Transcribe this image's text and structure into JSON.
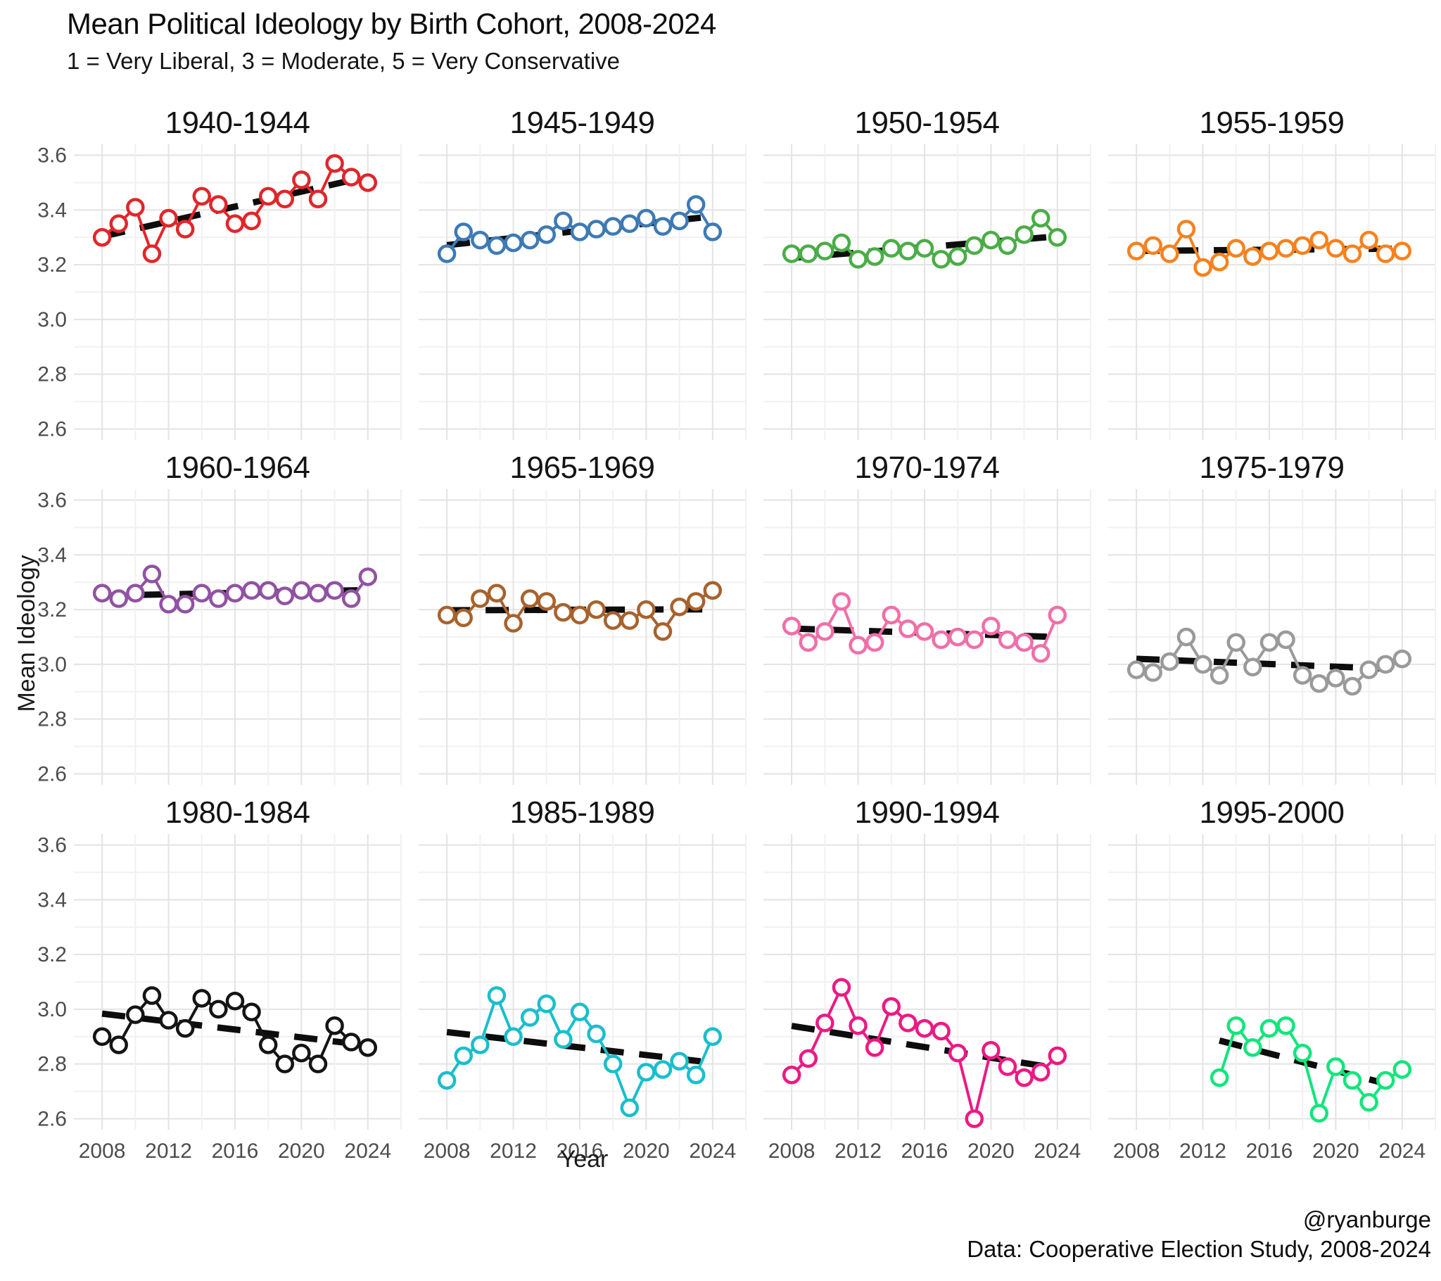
{
  "header": {
    "title": "Mean Political Ideology by Birth Cohort, 2008-2024",
    "subtitle": "1 = Very Liberal, 3 = Moderate, 5 = Very Conservative"
  },
  "caption": {
    "handle": "@ryanburge",
    "source": "Data: Cooperative Election Study, 2008-2024"
  },
  "axes": {
    "x_label": "Year",
    "y_label": "Mean Ideology",
    "x_ticks": [
      2008,
      2012,
      2016,
      2020,
      2024
    ],
    "x_minor": [
      2010,
      2014,
      2018,
      2022,
      2026
    ],
    "y_ticks": [
      3.6,
      3.4,
      3.2,
      3.0,
      2.8,
      2.6
    ],
    "y_minor": [
      3.5,
      3.3,
      3.1,
      2.9,
      2.7
    ],
    "x_domain": [
      2006.3,
      2026.0
    ],
    "y_domain": [
      2.56,
      3.64
    ]
  },
  "chart_data": {
    "type": "line",
    "title": "Mean Political Ideology by Birth Cohort, 2008-2024",
    "subtitle": "1 = Very Liberal, 3 = Moderate, 5 = Very Conservative",
    "xlabel": "Year",
    "ylabel": "Mean Ideology",
    "x_range": [
      2008,
      2024
    ],
    "y_range": [
      2.6,
      3.6
    ],
    "grid": true,
    "legend": false,
    "marker": "open-circle",
    "trend": "ols-dashed-black",
    "trend_color": "#0d0d0d",
    "facets": [
      {
        "label": "1940-1944",
        "color": "#e0262a",
        "x": [
          2008,
          2009,
          2010,
          2011,
          2012,
          2013,
          2014,
          2015,
          2016,
          2017,
          2018,
          2019,
          2020,
          2021,
          2022,
          2023,
          2024
        ],
        "values": [
          3.3,
          3.35,
          3.41,
          3.24,
          3.37,
          3.33,
          3.45,
          3.42,
          3.35,
          3.36,
          3.45,
          3.44,
          3.51,
          3.44,
          3.57,
          3.52,
          3.5
        ]
      },
      {
        "label": "1945-1949",
        "color": "#3d7ab5",
        "x": [
          2008,
          2009,
          2010,
          2011,
          2012,
          2013,
          2014,
          2015,
          2016,
          2017,
          2018,
          2019,
          2020,
          2021,
          2022,
          2023,
          2024
        ],
        "values": [
          3.24,
          3.32,
          3.29,
          3.27,
          3.28,
          3.29,
          3.31,
          3.36,
          3.32,
          3.33,
          3.34,
          3.35,
          3.37,
          3.34,
          3.36,
          3.42,
          3.32
        ]
      },
      {
        "label": "1950-1954",
        "color": "#4aad47",
        "x": [
          2008,
          2009,
          2010,
          2011,
          2012,
          2013,
          2014,
          2015,
          2016,
          2017,
          2018,
          2019,
          2020,
          2021,
          2022,
          2023,
          2024
        ],
        "values": [
          3.24,
          3.24,
          3.25,
          3.28,
          3.22,
          3.23,
          3.26,
          3.25,
          3.26,
          3.22,
          3.23,
          3.27,
          3.29,
          3.27,
          3.31,
          3.37,
          3.3
        ]
      },
      {
        "label": "1955-1959",
        "color": "#f5821f",
        "x": [
          2008,
          2009,
          2010,
          2011,
          2012,
          2013,
          2014,
          2015,
          2016,
          2017,
          2018,
          2019,
          2020,
          2021,
          2022,
          2023,
          2024
        ],
        "values": [
          3.25,
          3.27,
          3.24,
          3.33,
          3.19,
          3.21,
          3.26,
          3.23,
          3.25,
          3.26,
          3.27,
          3.29,
          3.26,
          3.24,
          3.29,
          3.24,
          3.25
        ]
      },
      {
        "label": "1960-1964",
        "color": "#9152a3",
        "x": [
          2008,
          2009,
          2010,
          2011,
          2012,
          2013,
          2014,
          2015,
          2016,
          2017,
          2018,
          2019,
          2020,
          2021,
          2022,
          2023,
          2024
        ],
        "values": [
          3.26,
          3.24,
          3.26,
          3.33,
          3.22,
          3.22,
          3.26,
          3.24,
          3.26,
          3.27,
          3.27,
          3.25,
          3.27,
          3.26,
          3.27,
          3.24,
          3.32
        ]
      },
      {
        "label": "1965-1969",
        "color": "#a8622d",
        "x": [
          2008,
          2009,
          2010,
          2011,
          2012,
          2013,
          2014,
          2015,
          2016,
          2017,
          2018,
          2019,
          2020,
          2021,
          2022,
          2023,
          2024
        ],
        "values": [
          3.18,
          3.17,
          3.24,
          3.26,
          3.15,
          3.24,
          3.23,
          3.19,
          3.18,
          3.2,
          3.16,
          3.16,
          3.2,
          3.12,
          3.21,
          3.23,
          3.27
        ]
      },
      {
        "label": "1970-1974",
        "color": "#f06fa8",
        "x": [
          2008,
          2009,
          2010,
          2011,
          2012,
          2013,
          2014,
          2015,
          2016,
          2017,
          2018,
          2019,
          2020,
          2021,
          2022,
          2023,
          2024
        ],
        "values": [
          3.14,
          3.08,
          3.12,
          3.23,
          3.07,
          3.08,
          3.18,
          3.13,
          3.12,
          3.09,
          3.1,
          3.09,
          3.14,
          3.09,
          3.08,
          3.04,
          3.18
        ]
      },
      {
        "label": "1975-1979",
        "color": "#9a9a9a",
        "x": [
          2008,
          2009,
          2010,
          2011,
          2012,
          2013,
          2014,
          2015,
          2016,
          2017,
          2018,
          2019,
          2020,
          2021,
          2022,
          2023,
          2024
        ],
        "values": [
          2.98,
          2.97,
          3.01,
          3.1,
          3.0,
          2.96,
          3.08,
          2.99,
          3.08,
          3.09,
          2.96,
          2.93,
          2.95,
          2.92,
          2.98,
          3.0,
          3.02
        ]
      },
      {
        "label": "1980-1984",
        "color": "#141414",
        "x": [
          2008,
          2009,
          2010,
          2011,
          2012,
          2013,
          2014,
          2015,
          2016,
          2017,
          2018,
          2019,
          2020,
          2021,
          2022,
          2023,
          2024
        ],
        "values": [
          2.9,
          2.87,
          2.98,
          3.05,
          2.96,
          2.93,
          3.04,
          3.0,
          3.03,
          2.99,
          2.87,
          2.8,
          2.84,
          2.8,
          2.94,
          2.88,
          2.86
        ]
      },
      {
        "label": "1985-1989",
        "color": "#1abecd",
        "x": [
          2008,
          2009,
          2010,
          2011,
          2012,
          2013,
          2014,
          2015,
          2016,
          2017,
          2018,
          2019,
          2020,
          2021,
          2022,
          2023,
          2024
        ],
        "values": [
          2.74,
          2.83,
          2.87,
          3.05,
          2.9,
          2.97,
          3.02,
          2.89,
          2.99,
          2.91,
          2.8,
          2.64,
          2.77,
          2.78,
          2.81,
          2.76,
          2.9
        ]
      },
      {
        "label": "1990-1994",
        "color": "#eb1a84",
        "x": [
          2008,
          2009,
          2010,
          2011,
          2012,
          2013,
          2014,
          2015,
          2016,
          2017,
          2018,
          2019,
          2020,
          2021,
          2022,
          2023,
          2024
        ],
        "values": [
          2.76,
          2.82,
          2.95,
          3.08,
          2.94,
          2.86,
          3.01,
          2.95,
          2.93,
          2.92,
          2.84,
          2.6,
          2.85,
          2.79,
          2.75,
          2.77,
          2.83
        ]
      },
      {
        "label": "1995-2000",
        "color": "#12e57c",
        "x": [
          2013,
          2014,
          2015,
          2016,
          2017,
          2018,
          2019,
          2020,
          2021,
          2022,
          2023,
          2024
        ],
        "values": [
          2.75,
          2.94,
          2.86,
          2.93,
          2.94,
          2.84,
          2.62,
          2.79,
          2.74,
          2.66,
          2.74,
          2.78
        ]
      }
    ]
  }
}
